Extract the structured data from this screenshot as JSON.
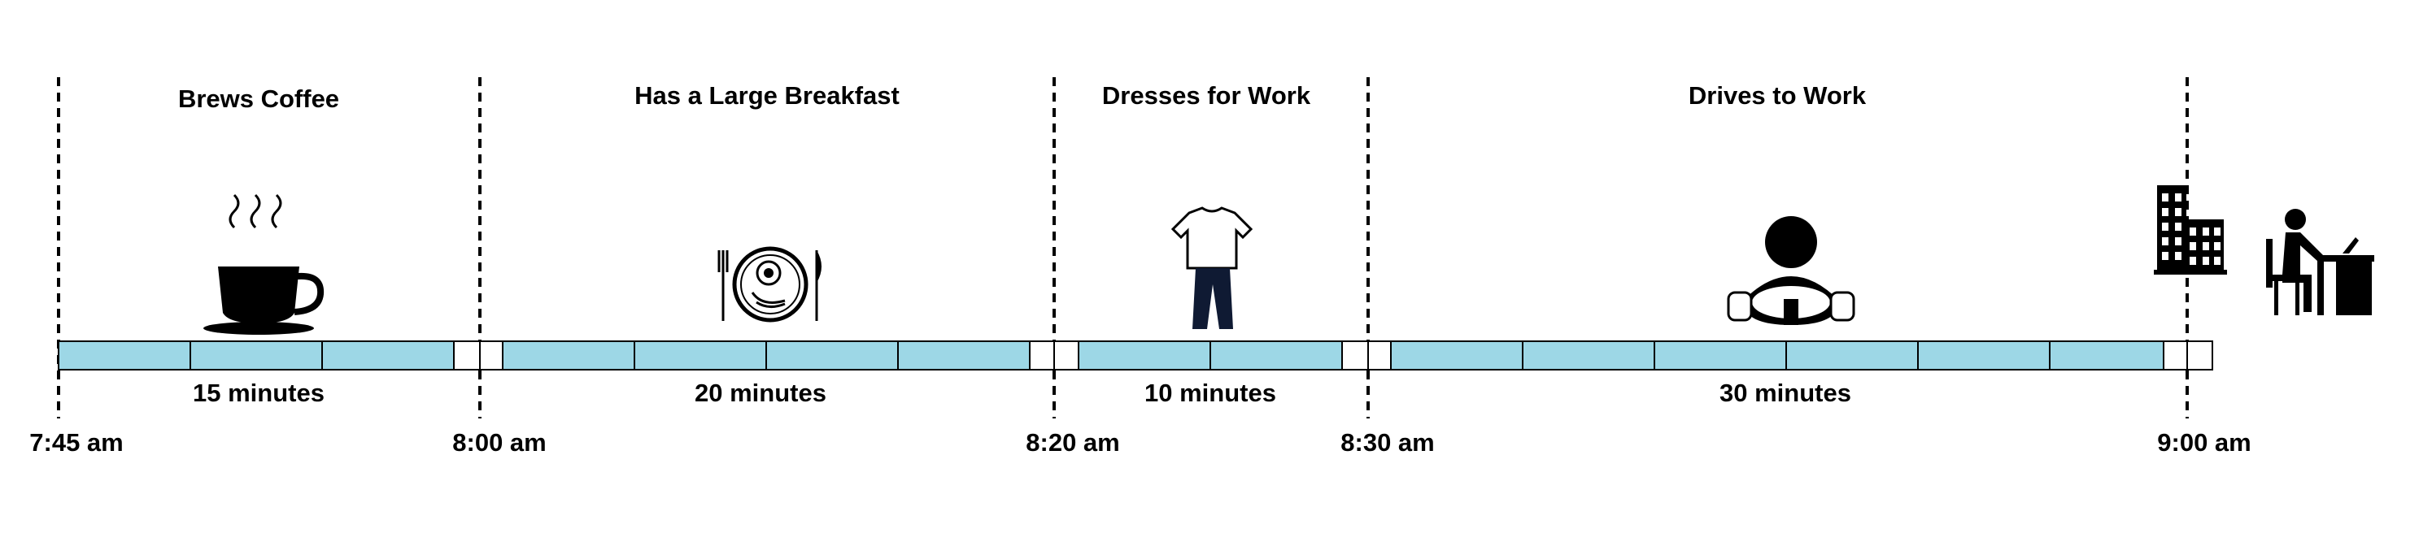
{
  "activities": [
    {
      "label": "Brews Coffee",
      "duration": "15 minutes",
      "icon": "coffee-cup-icon"
    },
    {
      "label": "Has a Large Breakfast",
      "duration": "20 minutes",
      "icon": "breakfast-plate-icon"
    },
    {
      "label": "Dresses for Work",
      "duration": "10 minutes",
      "icon": "clothes-icon"
    },
    {
      "label": "Drives to Work",
      "duration": "30 minutes",
      "icon": "driver-steering-wheel-icon"
    }
  ],
  "times": [
    {
      "label": "7:45 am",
      "color": "#000000"
    },
    {
      "label": "8:00 am",
      "color": "#000000"
    },
    {
      "label": "8:20 am",
      "color": "#000000"
    },
    {
      "label": "8:30 am",
      "color": "#000000"
    },
    {
      "label": "9:00 am",
      "color": "#e0201c"
    }
  ],
  "end_icons": [
    "office-building-icon",
    "person-at-desk-icon"
  ],
  "colors": {
    "segment_fill": "#9dd7e6",
    "accent_time": "#e0201c"
  }
}
